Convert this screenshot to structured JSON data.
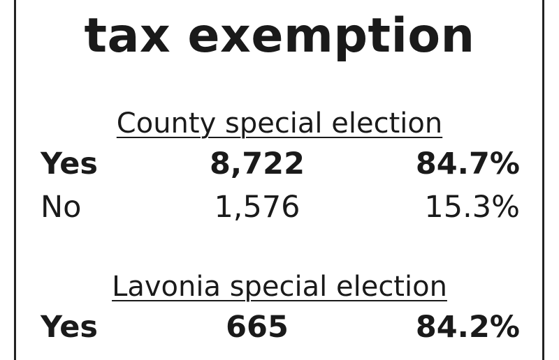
{
  "title": "tax exemption",
  "sections": [
    {
      "heading": "County special election",
      "rows": [
        [
          "Yes",
          "8,722",
          "84.7%"
        ],
        [
          "No",
          "1,576",
          "15.3%"
        ]
      ]
    },
    {
      "heading": "Lavonia special election",
      "rows": [
        [
          "Yes",
          "665",
          "84.2%"
        ]
      ]
    }
  ]
}
